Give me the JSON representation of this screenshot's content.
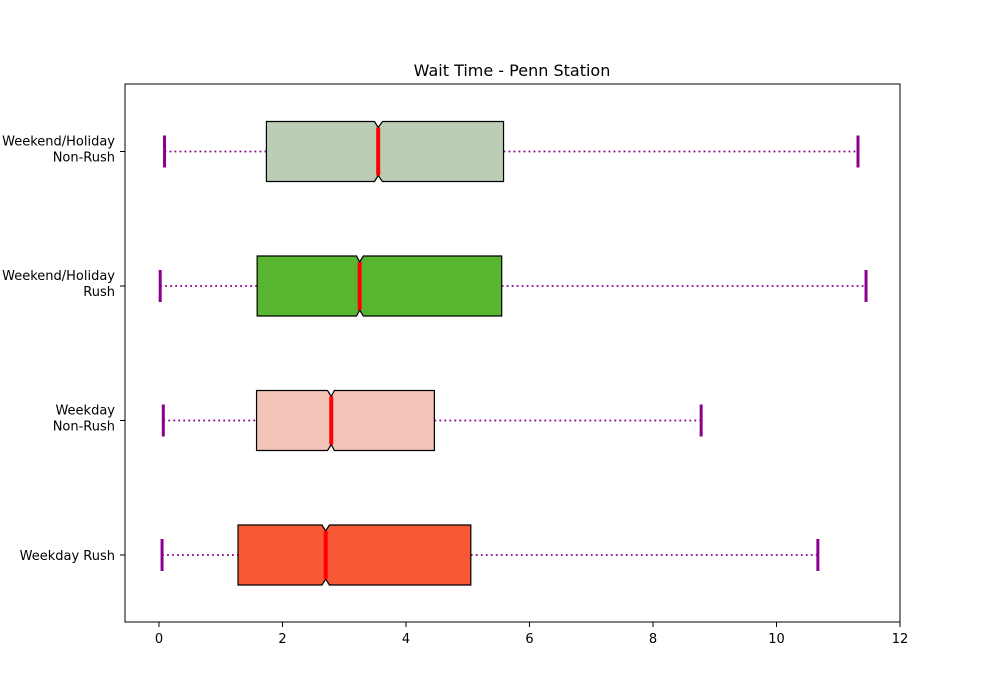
{
  "chart_data": {
    "type": "boxplot",
    "title": "Wait Time - Penn Station",
    "xlabel": "",
    "ylabel": "",
    "xlim": [
      -0.55,
      12
    ],
    "xticks": [
      0,
      2,
      4,
      6,
      8,
      10,
      12
    ],
    "grid": false,
    "orientation": "horizontal",
    "notched": true,
    "series": [
      {
        "name": "Weekday Rush",
        "label_lines": [
          "Weekday Rush"
        ],
        "whisker_low": 0.05,
        "q1": 1.28,
        "median": 2.7,
        "q3": 5.05,
        "notch_low": 2.64,
        "notch_high": 2.76,
        "whisker_high": 10.67,
        "color": "#f75836"
      },
      {
        "name": "Weekday\nNon-Rush",
        "label_lines": [
          "Weekday",
          "Non-Rush"
        ],
        "whisker_low": 0.07,
        "q1": 1.58,
        "median": 2.79,
        "q3": 4.46,
        "notch_low": 2.73,
        "notch_high": 2.84,
        "whisker_high": 8.78,
        "color": "#f3c3b8"
      },
      {
        "name": "Weekend/Holiday\nRush",
        "label_lines": [
          "Weekend/Holiday",
          "Rush"
        ],
        "whisker_low": 0.02,
        "q1": 1.59,
        "median": 3.25,
        "q3": 5.55,
        "notch_low": 3.2,
        "notch_high": 3.31,
        "whisker_high": 11.45,
        "color": "#58b52f"
      },
      {
        "name": "Weekend/Holiday\nNon-Rush",
        "label_lines": [
          "Weekend/Holiday",
          "Non-Rush"
        ],
        "whisker_low": 0.09,
        "q1": 1.74,
        "median": 3.55,
        "q3": 5.58,
        "notch_low": 3.49,
        "notch_high": 3.62,
        "whisker_high": 11.32,
        "color": "#bbcdb4"
      }
    ],
    "colors": {
      "median": "#ff0000",
      "whisker": "#8b008b",
      "box_edge": "#000000",
      "axis": "#000000"
    }
  }
}
